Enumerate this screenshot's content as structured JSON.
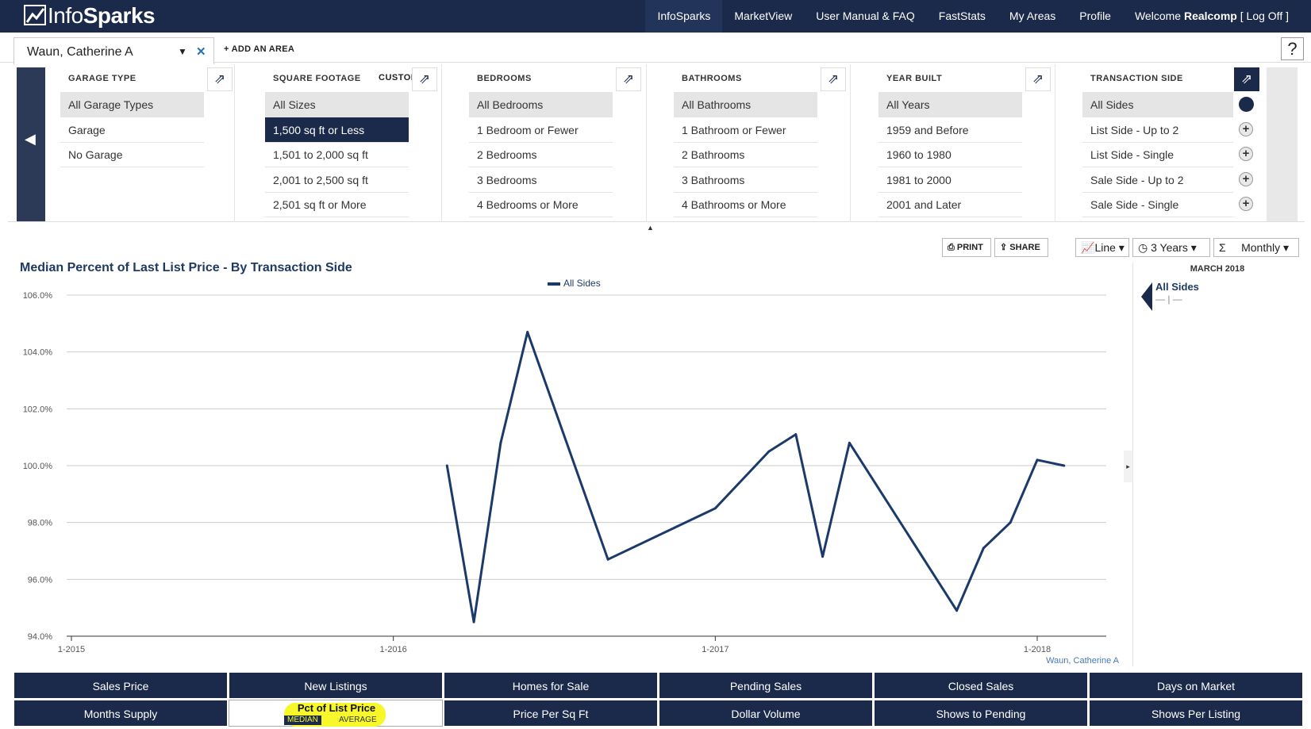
{
  "app": {
    "logo_text_light": "Info",
    "logo_text_bold": "Sparks",
    "nav": [
      "InfoSparks",
      "MarketView",
      "User Manual & FAQ",
      "FastStats",
      "My Areas",
      "Profile"
    ],
    "welcome_prefix": "Welcome ",
    "welcome_user": "Realcomp",
    "logoff": " [ Log Off ]"
  },
  "area": {
    "selected": "Waun, Catherine A",
    "add_label": "+ ADD AN AREA",
    "help": "?"
  },
  "filters": {
    "garage": {
      "title": "GARAGE TYPE",
      "options": [
        "All Garage Types",
        "Garage",
        "No Garage"
      ]
    },
    "sqft": {
      "title": "SQUARE FOOTAGE",
      "custom": "CUSTOM",
      "options": [
        "All Sizes",
        "1,500 sq ft or Less",
        "1,501 to 2,000 sq ft",
        "2,001 to 2,500 sq ft",
        "2,501 sq ft or More"
      ]
    },
    "bedrooms": {
      "title": "BEDROOMS",
      "options": [
        "All Bedrooms",
        "1 Bedroom or Fewer",
        "2 Bedrooms",
        "3 Bedrooms",
        "4 Bedrooms or More"
      ]
    },
    "bathrooms": {
      "title": "BATHROOMS",
      "options": [
        "All Bathrooms",
        "1 Bathroom or Fewer",
        "2 Bathrooms",
        "3 Bathrooms",
        "4 Bathrooms or More"
      ]
    },
    "yearbuilt": {
      "title": "YEAR BUILT",
      "options": [
        "All Years",
        "1959 and Before",
        "1960 to 1980",
        "1981 to 2000",
        "2001 and Later"
      ]
    },
    "transaction": {
      "title": "TRANSACTION SIDE",
      "options": [
        "All Sides",
        "List Side - Up to 2",
        "List Side - Single",
        "Sale Side - Up to 2",
        "Sale Side - Single"
      ]
    }
  },
  "toolbar": {
    "print": "PRINT",
    "share": "SHARE",
    "chart_type": "Line",
    "range": "3 Years",
    "interval": "Monthly"
  },
  "chart_data": {
    "type": "line",
    "title": "Median Percent of Last List Price - By Transaction Side",
    "legend": "All Sides",
    "legend_position": "top-center",
    "ylim": [
      94.0,
      106.0
    ],
    "yticks": [
      "94.0%",
      "96.0%",
      "98.0%",
      "100.0%",
      "102.0%",
      "104.0%",
      "106.0%"
    ],
    "xticks": [
      "1-2015",
      "1-2016",
      "1-2017",
      "1-2018"
    ],
    "grid": true,
    "source_label": "Waun, Catherine A",
    "series": [
      {
        "name": "All Sides",
        "color": "#1b3a6a",
        "x": [
          "2016-03",
          "2016-04",
          "2016-05",
          "2016-06",
          "2016-09",
          "2017-01",
          "2017-03",
          "2017-04",
          "2017-05",
          "2017-06",
          "2017-10",
          "2017-11",
          "2017-12",
          "2018-01",
          "2018-02"
        ],
        "values": [
          100.0,
          94.5,
          100.8,
          104.7,
          96.7,
          98.5,
          100.5,
          101.1,
          96.8,
          100.8,
          94.9,
          97.1,
          98.0,
          100.2,
          100.0
        ]
      }
    ]
  },
  "sidebar": {
    "month": "MARCH 2018",
    "series_label": "All Sides",
    "series_value": "— | —"
  },
  "metrics": {
    "row1": [
      "Sales Price",
      "New Listings",
      "Homes for Sale",
      "Pending Sales",
      "Closed Sales",
      "Days on Market"
    ],
    "row2": [
      "Months Supply",
      "Pct of List Price",
      "Price Per Sq Ft",
      "Dollar Volume",
      "Shows to Pending",
      "Shows Per Listing"
    ],
    "active_sub_selected": "MEDIAN",
    "active_sub_other": "AVERAGE",
    "highlight_color": "#f7f72a"
  }
}
